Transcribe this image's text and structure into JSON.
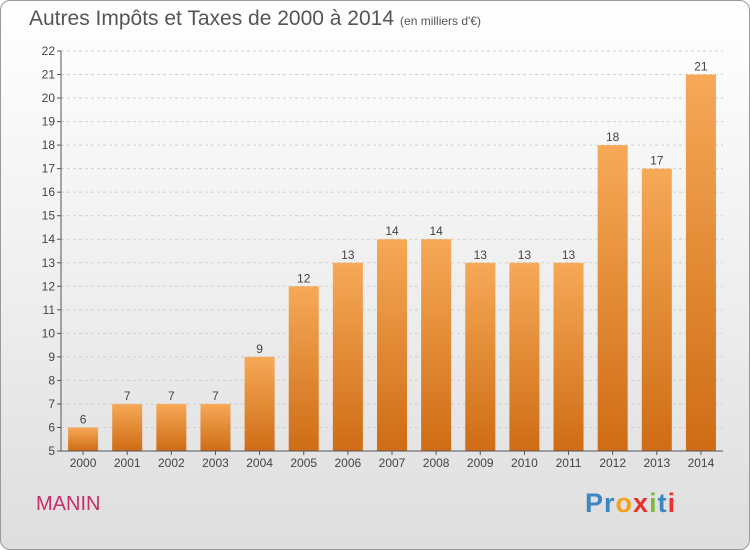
{
  "title": "Autres Impôts et Taxes de 2000 à 2014",
  "subtitle": "(en milliers d'€)",
  "place_name": "MANIN",
  "brand": {
    "letters": [
      "P",
      "r",
      "o",
      "x",
      "i",
      "t",
      "i"
    ],
    "colors": [
      "#3b86c4",
      "#3b86c4",
      "#f2a01c",
      "#e8312f",
      "#7dbb3c",
      "#3b86c4",
      "#e8312f"
    ]
  },
  "colors": {
    "bar_light": "#f6a957",
    "bar_dark": "#cf6c15",
    "grid": "#cfcfcf",
    "axis": "#555555"
  },
  "chart_data": {
    "type": "bar",
    "categories": [
      "2000",
      "2001",
      "2002",
      "2003",
      "2004",
      "2005",
      "2006",
      "2007",
      "2008",
      "2009",
      "2010",
      "2011",
      "2012",
      "2013",
      "2014"
    ],
    "values": [
      6,
      7,
      7,
      7,
      9,
      12,
      13,
      14,
      14,
      13,
      13,
      13,
      18,
      17,
      21
    ],
    "ylim": [
      5,
      22
    ],
    "yticks": [
      5,
      6,
      7,
      8,
      9,
      10,
      11,
      12,
      13,
      14,
      15,
      16,
      17,
      18,
      19,
      20,
      21,
      22
    ],
    "grid": true,
    "xlabel": "",
    "ylabel": ""
  }
}
